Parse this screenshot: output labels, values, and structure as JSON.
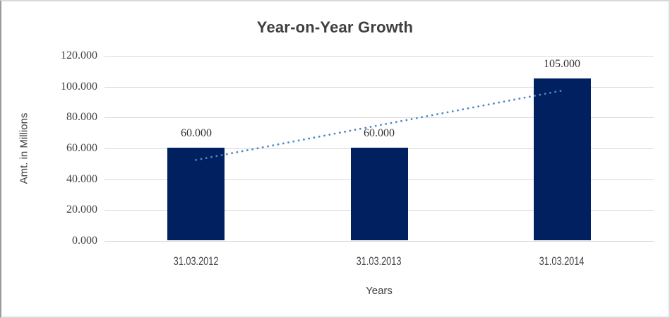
{
  "chart_data": {
    "type": "bar",
    "title": "Year-on-Year Growth",
    "xlabel": "Years",
    "ylabel": "Amt. in Millions",
    "categories": [
      "31.03.2012",
      "31.03.2013",
      "31.03.2014"
    ],
    "values": [
      60,
      60,
      105
    ],
    "value_labels": [
      "60.000",
      "60.000",
      "105.000"
    ],
    "yticks": [
      0,
      20,
      40,
      60,
      80,
      100,
      120
    ],
    "ytick_labels": [
      "0.000",
      "20.000",
      "40.000",
      "60.000",
      "80.000",
      "100.000",
      "120.000"
    ],
    "ylim": [
      0,
      120
    ],
    "grid": true,
    "legend": "none",
    "bar_color": "#002060",
    "gridline_color": "#d9d9d9",
    "trendline": {
      "type": "linear",
      "dash": "dotted",
      "color": "#4e87c7",
      "values": [
        52.5,
        75,
        97.5
      ]
    }
  }
}
